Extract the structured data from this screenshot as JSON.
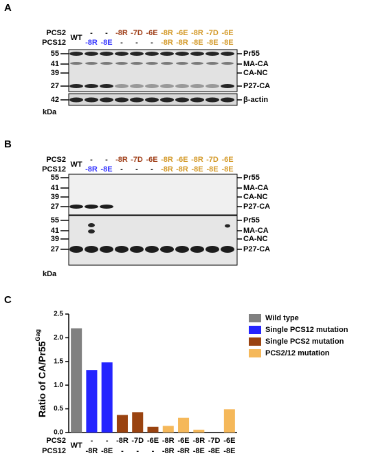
{
  "panels": {
    "a": "A",
    "b": "B",
    "c": "C"
  },
  "row_labels": {
    "pcs2": "PCS2",
    "pcs12": "PCS12"
  },
  "lanes": [
    {
      "pcs2": "WT",
      "pcs2_color": "#000000",
      "pcs12": null,
      "pcs12_color": "#000000"
    },
    {
      "pcs2": "-",
      "pcs2_color": "#000000",
      "pcs12": "-8R",
      "pcs12_color": "#3333ff"
    },
    {
      "pcs2": "-",
      "pcs2_color": "#000000",
      "pcs12": "-8E",
      "pcs12_color": "#3333ff"
    },
    {
      "pcs2": "-8R",
      "pcs2_color": "#a0401a",
      "pcs12": "-",
      "pcs12_color": "#000000"
    },
    {
      "pcs2": "-7D",
      "pcs2_color": "#a0401a",
      "pcs12": "-",
      "pcs12_color": "#000000"
    },
    {
      "pcs2": "-6E",
      "pcs2_color": "#a0401a",
      "pcs12": "-",
      "pcs12_color": "#000000"
    },
    {
      "pcs2": "-8R",
      "pcs2_color": "#d49a2a",
      "pcs12": "-8R",
      "pcs12_color": "#d49a2a"
    },
    {
      "pcs2": "-6E",
      "pcs2_color": "#d49a2a",
      "pcs12": "-8R",
      "pcs12_color": "#d49a2a"
    },
    {
      "pcs2": "-8R",
      "pcs2_color": "#d49a2a",
      "pcs12": "-8E",
      "pcs12_color": "#d49a2a"
    },
    {
      "pcs2": "-7D",
      "pcs2_color": "#d49a2a",
      "pcs12": "-8E",
      "pcs12_color": "#d49a2a"
    },
    {
      "pcs2": "-6E",
      "pcs2_color": "#d49a2a",
      "pcs12": "-8E",
      "pcs12_color": "#d49a2a"
    }
  ],
  "blot_a": {
    "markers": [
      "55",
      "41",
      "39",
      "27"
    ],
    "bands": [
      "Pr55",
      "MA-CA",
      "CA-NC",
      "P27-CA"
    ],
    "actin_marker": "42",
    "actin": "β-actin",
    "unit": "kDa"
  },
  "blot_b": {
    "markers_top": [
      "55",
      "41",
      "39",
      "27"
    ],
    "bands_top": [
      "Pr55",
      "MA-CA",
      "CA-NC",
      "P27-CA"
    ],
    "markers_bottom": [
      "55",
      "41",
      "39",
      "27"
    ],
    "bands_bottom": [
      "Pr55",
      "MA-CA",
      "CA-NC",
      "P27-CA"
    ],
    "unit": "kDa"
  },
  "chart_data": {
    "type": "bar",
    "y_label": "Ratio of CA/Pr55",
    "y_label_sup": "Gag",
    "row_labels": [
      "PCS2",
      "PCS12"
    ],
    "categories": [
      "WT",
      "-",
      "-",
      "-8R",
      "-7D",
      "-6E",
      "-8R",
      "-6E",
      "-8R",
      "-7D",
      "-6E"
    ],
    "categories_pcs12": [
      null,
      "-8R",
      "-8E",
      "-",
      "-",
      "-",
      "-8R",
      "-8R",
      "-8E",
      "-8E",
      "-8E"
    ],
    "series": [
      {
        "name": "Wild type",
        "color": "#808080",
        "values": [
          2.2,
          null,
          null,
          null,
          null,
          null,
          null,
          null,
          null,
          null,
          null
        ]
      },
      {
        "name": "Single PCS12 mutation",
        "color": "#2424ff",
        "values": [
          null,
          1.32,
          1.48,
          null,
          null,
          null,
          null,
          null,
          null,
          null,
          null
        ]
      },
      {
        "name": "Single PCS2 mutation",
        "color": "#9a4310",
        "values": [
          null,
          null,
          null,
          0.37,
          0.43,
          0.12,
          null,
          null,
          null,
          null,
          null
        ]
      },
      {
        "name": "PCS2/12 mutation",
        "color": "#f5b85a",
        "values": [
          null,
          null,
          null,
          null,
          null,
          null,
          0.14,
          0.31,
          0.06,
          0,
          0.49
        ]
      }
    ],
    "ylim": [
      0,
      2.5
    ],
    "yticks": [
      {
        "value": 0,
        "label": "0.0"
      },
      {
        "value": 0.5,
        "label": "0.5"
      },
      {
        "value": 1,
        "label": "1.0"
      },
      {
        "value": 1.5,
        "label": "1.5"
      },
      {
        "value": 2,
        "label": "2.0"
      },
      {
        "value": 2.5,
        "label": "2.5"
      }
    ],
    "legend": "right"
  }
}
